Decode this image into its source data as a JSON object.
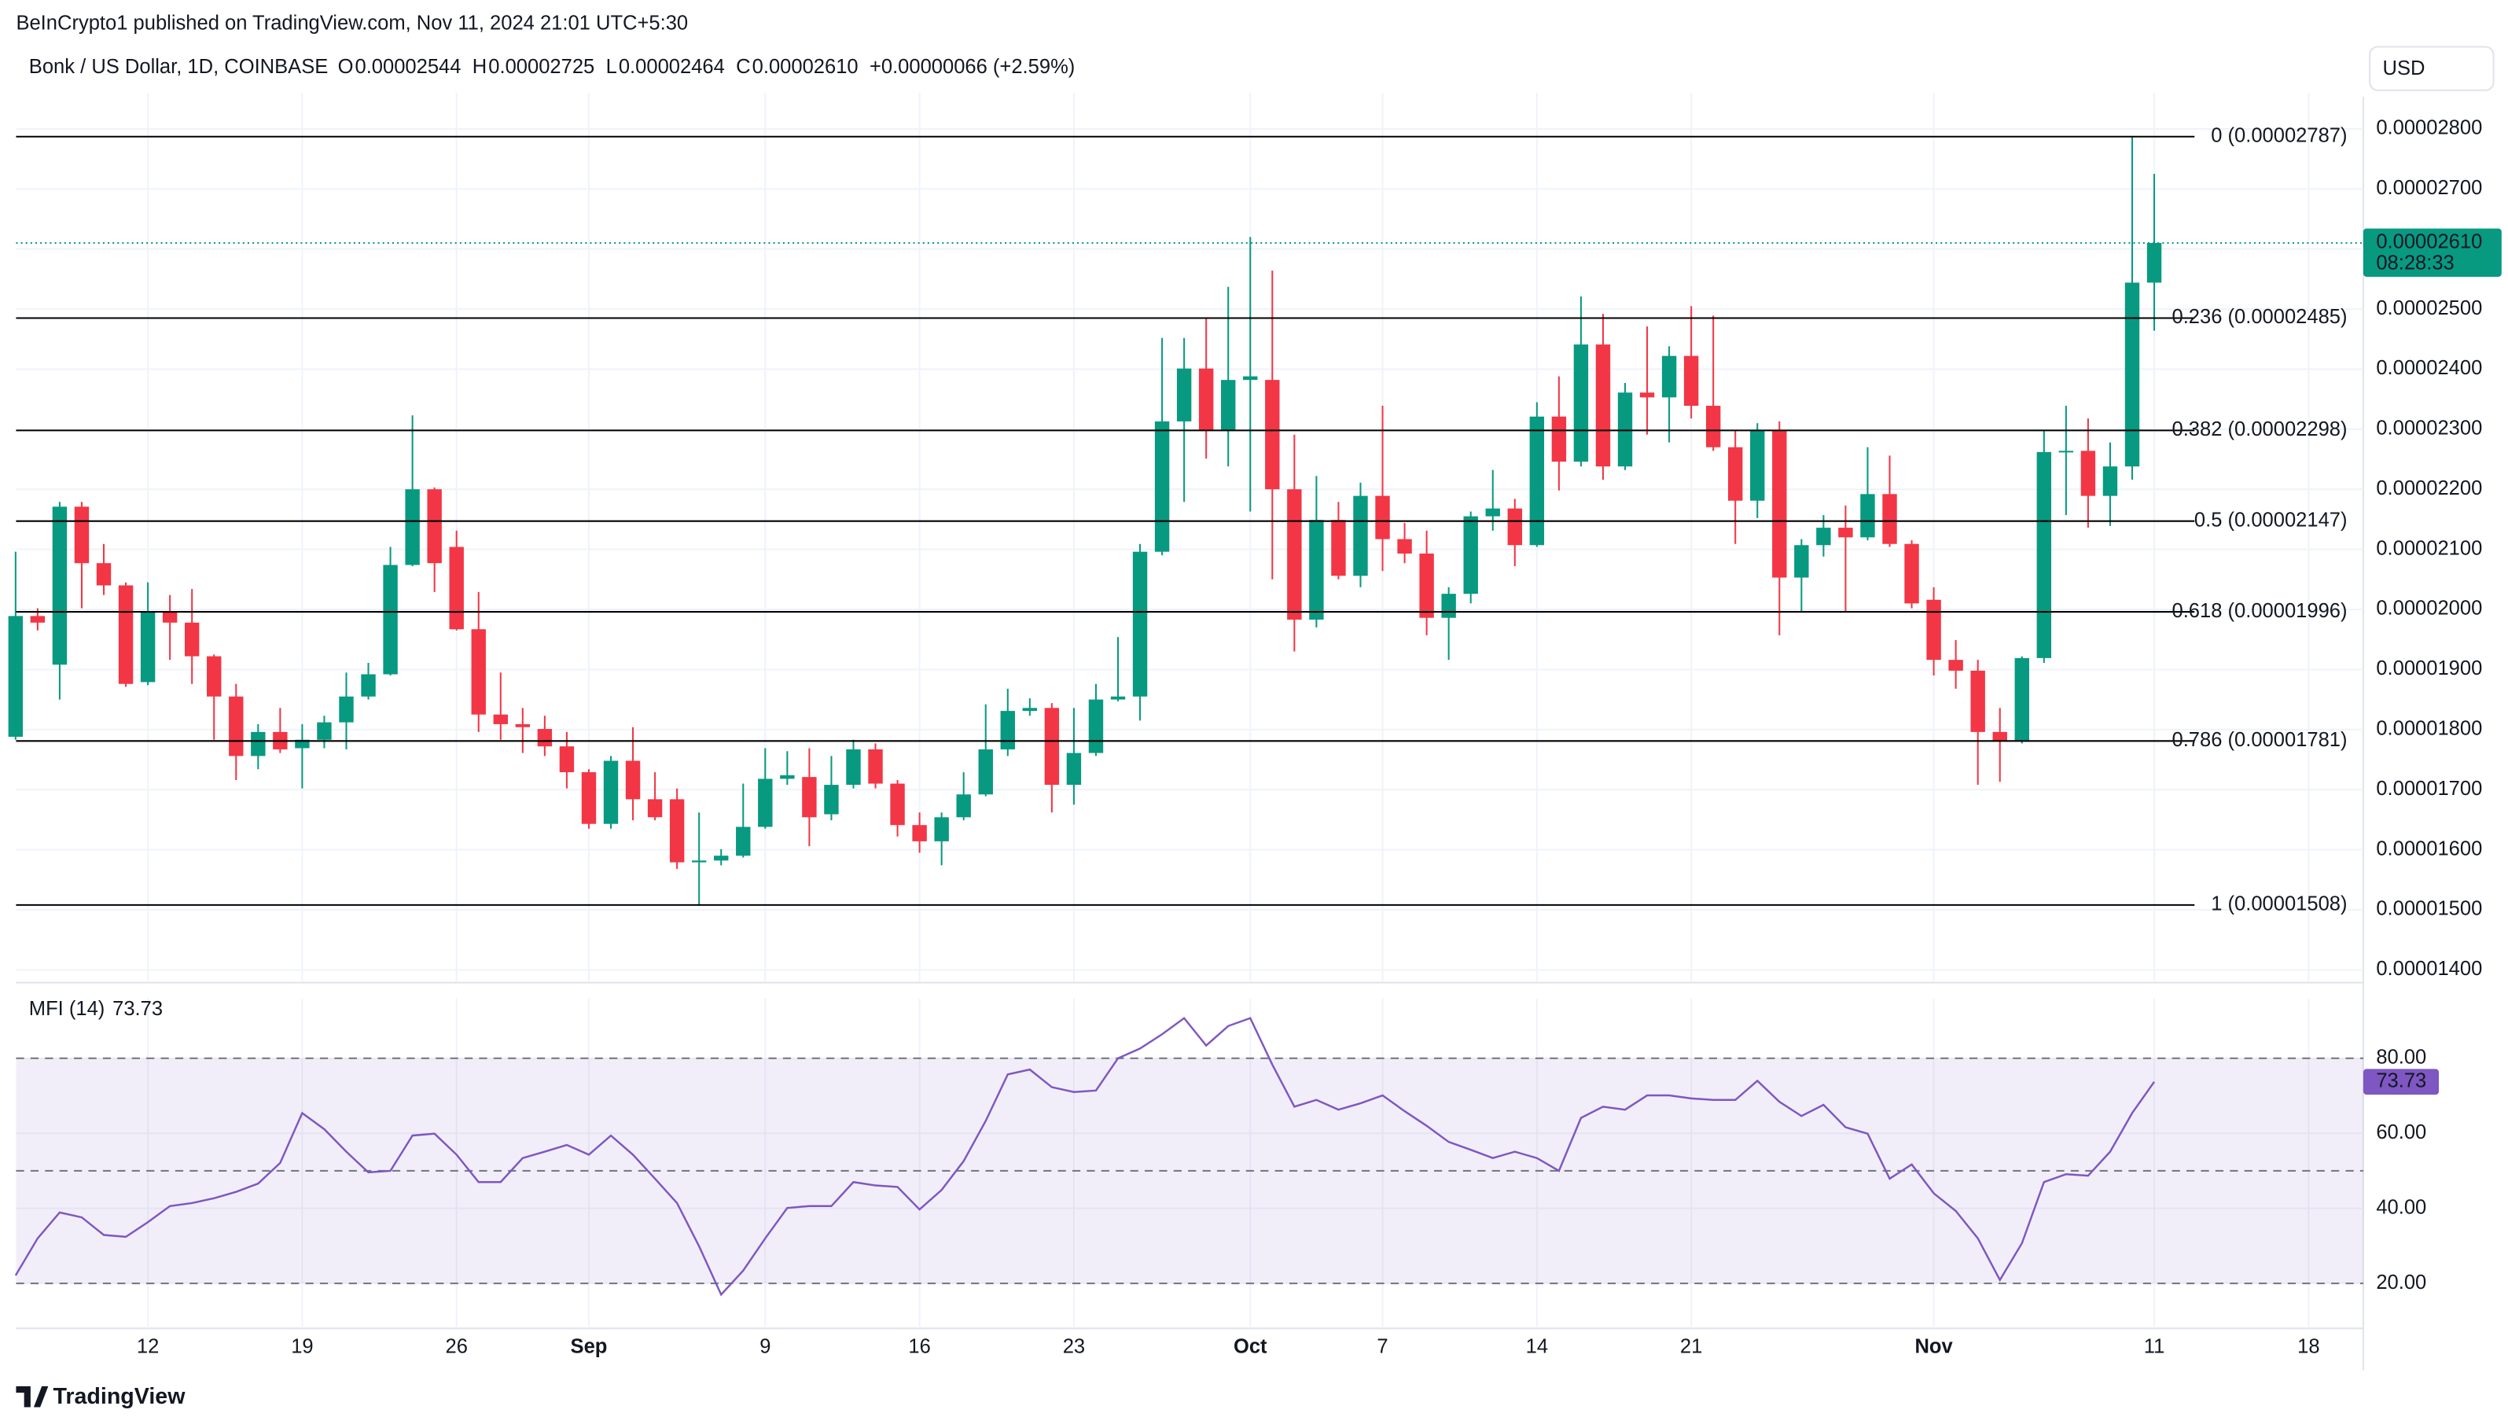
{
  "header": {
    "attribution": "BeInCrypto1 published on TradingView.com, Nov 11, 2024 21:01 UTC+5:30",
    "symbol": "Bonk / US Dollar, 1D, COINBASE",
    "ohlc": [
      {
        "key": "O",
        "value": "0.00002544"
      },
      {
        "key": "H",
        "value": "0.00002725"
      },
      {
        "key": "L",
        "value": "0.00002464"
      },
      {
        "key": "C",
        "value": "0.00002610"
      }
    ],
    "change": "+0.00000066 (+2.59%)",
    "currency": "USD"
  },
  "footer": {
    "brand": "TradingView"
  },
  "chart_data": [
    {
      "type": "candlestick",
      "up_color": "#089981",
      "down_color": "#f23645",
      "grid": true,
      "categories": [
        null,
        null,
        null,
        null,
        null,
        null,
        "12",
        null,
        null,
        null,
        null,
        null,
        null,
        "19",
        null,
        null,
        null,
        null,
        null,
        null,
        "26",
        null,
        null,
        null,
        null,
        null,
        "Sep",
        null,
        null,
        null,
        null,
        null,
        null,
        null,
        "9",
        null,
        null,
        null,
        null,
        null,
        null,
        "16",
        null,
        null,
        null,
        null,
        null,
        null,
        "23",
        null,
        null,
        null,
        null,
        null,
        null,
        null,
        "Oct",
        null,
        null,
        null,
        null,
        null,
        "7",
        null,
        null,
        null,
        null,
        null,
        null,
        "14",
        null,
        null,
        null,
        null,
        null,
        null,
        "21",
        null,
        null,
        null,
        null,
        null,
        null,
        null,
        null,
        null,
        null,
        "Nov",
        null,
        null,
        null,
        null,
        null,
        null,
        null,
        null,
        null,
        "11",
        null,
        null,
        null,
        null,
        null,
        null,
        "18",
        null,
        null
      ],
      "open": [
        1.788e-05,
        1.989e-05,
        1.908e-05,
        2.171e-05,
        2.077e-05,
        2.04e-05,
        1.879e-05,
        1.997e-05,
        1.978e-05,
        1.922e-05,
        1.855e-05,
        1.756e-05,
        1.796e-05,
        1.769e-05,
        1.783e-05,
        1.812e-05,
        1.855e-05,
        1.892e-05,
        2.074e-05,
        2.2e-05,
        2.104e-05,
        1.967e-05,
        1.825e-05,
        1.809e-05,
        1.801e-05,
        1.772e-05,
        1.729e-05,
        1.643e-05,
        1.748e-05,
        1.684e-05,
        1.684e-05,
        1.579e-05,
        1.582e-05,
        1.59e-05,
        1.638e-05,
        1.718e-05,
        1.721e-05,
        1.659e-05,
        1.708e-05,
        1.767e-05,
        1.71e-05,
        1.641e-05,
        1.614e-05,
        1.654e-05,
        1.692e-05,
        1.767e-05,
        1.831e-05,
        1.836e-05,
        1.708e-05,
        1.761e-05,
        1.85e-05,
        1.855e-05,
        2.096e-05,
        2.313e-05,
        2.401e-05,
        2.297e-05,
        2.382e-05,
        2.382e-05,
        2.2e-05,
        1.983e-05,
        2.149e-05,
        2.056e-05,
        2.189e-05,
        2.117e-05,
        2.093e-05,
        1.986e-05,
        2.026e-05,
        2.155e-05,
        2.168e-05,
        2.107e-05,
        2.321e-05,
        2.246e-05,
        2.441e-05,
        2.238e-05,
        2.361e-05,
        2.353e-05,
        2.422e-05,
        2.339e-05,
        2.27e-05,
        2.181e-05,
        2.297e-05,
        2.053e-05,
        2.107e-05,
        2.136e-05,
        2.12e-05,
        2.192e-05,
        2.109e-05,
        2.016e-05,
        1.916e-05,
        1.898e-05,
        1.796e-05,
        1.78e-05,
        1.919e-05,
        2.262e-05,
        2.264e-05,
        2.189e-05,
        2.238e-05,
        2.544e-05,
        null,
        null,
        null,
        null,
        null,
        null,
        null,
        null,
        null
      ],
      "high": [
        2.096e-05,
        2.002e-05,
        2.179e-05,
        2.179e-05,
        2.109e-05,
        2.045e-05,
        2.045e-05,
        2.024e-05,
        2.034e-05,
        1.925e-05,
        1.876e-05,
        1.809e-05,
        1.836e-05,
        1.809e-05,
        1.823e-05,
        1.895e-05,
        1.911e-05,
        2.104e-05,
        2.323e-05,
        2.203e-05,
        2.131e-05,
        2.029e-05,
        1.895e-05,
        1.836e-05,
        1.823e-05,
        1.796e-05,
        1.734e-05,
        1.756e-05,
        1.804e-05,
        1.729e-05,
        1.702e-05,
        1.662e-05,
        1.601e-05,
        1.71e-05,
        1.769e-05,
        1.764e-05,
        1.769e-05,
        1.756e-05,
        1.783e-05,
        1.777e-05,
        1.716e-05,
        1.662e-05,
        1.662e-05,
        1.729e-05,
        1.842e-05,
        1.868e-05,
        1.852e-05,
        1.844e-05,
        1.836e-05,
        1.876e-05,
        1.954e-05,
        2.109e-05,
        2.452e-05,
        2.452e-05,
        2.484e-05,
        2.537e-05,
        2.62e-05,
        2.564e-05,
        2.291e-05,
        2.222e-05,
        2.179e-05,
        2.211e-05,
        2.339e-05,
        2.144e-05,
        2.131e-05,
        2.037e-05,
        2.163e-05,
        2.232e-05,
        2.184e-05,
        2.345e-05,
        2.388e-05,
        2.521e-05,
        2.492e-05,
        2.377e-05,
        2.471e-05,
        2.438e-05,
        2.505e-05,
        2.489e-05,
        2.297e-05,
        2.31e-05,
        2.313e-05,
        2.117e-05,
        2.157e-05,
        2.173e-05,
        2.27e-05,
        2.256e-05,
        2.115e-05,
        2.037e-05,
        1.949e-05,
        1.916e-05,
        1.836e-05,
        1.922e-05,
        2.297e-05,
        2.339e-05,
        2.318e-05,
        2.278e-05,
        2.787e-05,
        2.725e-05,
        null,
        null,
        null,
        null,
        null,
        null,
        null,
        null,
        null
      ],
      "low": [
        1.783e-05,
        1.965e-05,
        1.85e-05,
        2.002e-05,
        2.024e-05,
        1.871e-05,
        1.874e-05,
        1.916e-05,
        1.876e-05,
        1.783e-05,
        1.716e-05,
        1.734e-05,
        1.761e-05,
        1.702e-05,
        1.769e-05,
        1.767e-05,
        1.85e-05,
        1.89e-05,
        2.072e-05,
        2.029e-05,
        1.965e-05,
        1.796e-05,
        1.783e-05,
        1.761e-05,
        1.756e-05,
        1.702e-05,
        1.635e-05,
        1.635e-05,
        1.649e-05,
        1.649e-05,
        1.568e-05,
        1.508e-05,
        1.574e-05,
        1.587e-05,
        1.635e-05,
        1.708e-05,
        1.606e-05,
        1.649e-05,
        1.702e-05,
        1.702e-05,
        1.622e-05,
        1.595e-05,
        1.574e-05,
        1.649e-05,
        1.689e-05,
        1.756e-05,
        1.823e-05,
        1.662e-05,
        1.675e-05,
        1.756e-05,
        1.847e-05,
        1.815e-05,
        2.09e-05,
        2.179e-05,
        2.251e-05,
        2.238e-05,
        2.163e-05,
        2.05e-05,
        1.93e-05,
        1.97e-05,
        2.05e-05,
        2.037e-05,
        2.064e-05,
        2.077e-05,
        1.957e-05,
        1.916e-05,
        2.01e-05,
        2.131e-05,
        2.072e-05,
        2.104e-05,
        2.198e-05,
        2.238e-05,
        2.216e-05,
        2.232e-05,
        2.291e-05,
        2.278e-05,
        2.318e-05,
        2.264e-05,
        2.109e-05,
        2.152e-05,
        1.957e-05,
        1.997e-05,
        2.088e-05,
        1.997e-05,
        2.115e-05,
        2.104e-05,
        2.002e-05,
        1.89e-05,
        1.868e-05,
        1.708e-05,
        1.713e-05,
        1.777e-05,
        1.911e-05,
        2.157e-05,
        2.136e-05,
        2.139e-05,
        2.216e-05,
        2.464e-05,
        null,
        null,
        null,
        null,
        null,
        null,
        null,
        null,
        null
      ],
      "close": [
        1.989e-05,
        1.978e-05,
        2.171e-05,
        2.077e-05,
        2.04e-05,
        1.876e-05,
        1.997e-05,
        1.978e-05,
        1.922e-05,
        1.855e-05,
        1.756e-05,
        1.796e-05,
        1.767e-05,
        1.783e-05,
        1.812e-05,
        1.855e-05,
        1.892e-05,
        2.074e-05,
        2.2e-05,
        2.077e-05,
        1.967e-05,
        1.825e-05,
        1.809e-05,
        1.804e-05,
        1.772e-05,
        1.729e-05,
        1.643e-05,
        1.748e-05,
        1.684e-05,
        1.654e-05,
        1.579e-05,
        1.582e-05,
        1.59e-05,
        1.638e-05,
        1.718e-05,
        1.724e-05,
        1.654e-05,
        1.708e-05,
        1.767e-05,
        1.71e-05,
        1.641e-05,
        1.614e-05,
        1.654e-05,
        1.692e-05,
        1.767e-05,
        1.831e-05,
        1.836e-05,
        1.708e-05,
        1.761e-05,
        1.85e-05,
        1.855e-05,
        2.096e-05,
        2.313e-05,
        2.401e-05,
        2.297e-05,
        2.382e-05,
        2.388e-05,
        2.2e-05,
        1.983e-05,
        2.149e-05,
        2.056e-05,
        2.189e-05,
        2.117e-05,
        2.093e-05,
        1.986e-05,
        2.026e-05,
        2.155e-05,
        2.168e-05,
        2.107e-05,
        2.321e-05,
        2.246e-05,
        2.441e-05,
        2.238e-05,
        2.361e-05,
        2.353e-05,
        2.422e-05,
        2.339e-05,
        2.27e-05,
        2.181e-05,
        2.297e-05,
        2.053e-05,
        2.107e-05,
        2.136e-05,
        2.12e-05,
        2.192e-05,
        2.109e-05,
        2.01e-05,
        1.916e-05,
        1.898e-05,
        1.796e-05,
        1.78e-05,
        1.919e-05,
        2.262e-05,
        2.264e-05,
        2.189e-05,
        2.238e-05,
        2.544e-05,
        2.61e-05,
        null,
        null,
        null,
        null,
        null,
        null,
        null,
        null,
        null
      ],
      "ylim": [
        1.38e-05,
        2.86e-05
      ],
      "yticks": [
        {
          "value": 2.8e-05,
          "label": "0.00002800"
        },
        {
          "value": 2.7e-05,
          "label": "0.00002700"
        },
        {
          "value": 2.6e-05,
          "label": "0.00002600"
        },
        {
          "value": 2.5e-05,
          "label": "0.00002500"
        },
        {
          "value": 2.4e-05,
          "label": "0.00002400"
        },
        {
          "value": 2.3e-05,
          "label": "0.00002300"
        },
        {
          "value": 2.2e-05,
          "label": "0.00002200"
        },
        {
          "value": 2.1e-05,
          "label": "0.00002100"
        },
        {
          "value": 2e-05,
          "label": "0.00002000"
        },
        {
          "value": 1.9e-05,
          "label": "0.00001900"
        },
        {
          "value": 1.8e-05,
          "label": "0.00001800"
        },
        {
          "value": 1.7e-05,
          "label": "0.00001700"
        },
        {
          "value": 1.6e-05,
          "label": "0.00001600"
        },
        {
          "value": 1.5e-05,
          "label": "0.00001500"
        },
        {
          "value": 1.4e-05,
          "label": "0.00001400"
        }
      ],
      "fib_levels": [
        {
          "label": "0 (0.00002787)",
          "value": 2.787e-05
        },
        {
          "label": "0.236 (0.00002485)",
          "value": 2.485e-05
        },
        {
          "label": "0.382 (0.00002298)",
          "value": 2.298e-05
        },
        {
          "label": "0.5 (0.00002147)",
          "value": 2.147e-05
        },
        {
          "label": "0.618 (0.00001996)",
          "value": 1.996e-05
        },
        {
          "label": "0.786 (0.00001781)",
          "value": 1.781e-05
        },
        {
          "label": "1 (0.00001508)",
          "value": 1.508e-05
        }
      ],
      "fib_color": "#000000",
      "last_price": {
        "value": 2.61e-05,
        "label": "0.00002610"
      },
      "countdown": "08:28:33"
    },
    {
      "type": "line",
      "name": "MFI (14)",
      "color": "#7e57c2",
      "last_label": "73.73",
      "grid": true,
      "values": [
        22.1,
        32,
        38.9,
        37.6,
        32.9,
        32.4,
        36.3,
        40.6,
        41.4,
        42.7,
        44.4,
        46.6,
        52.1,
        65.4,
        61.1,
        55.1,
        49.6,
        50,
        59.4,
        59.9,
        54.3,
        47,
        47,
        53.4,
        55.1,
        56.9,
        54.3,
        59.4,
        54.3,
        47.9,
        41.4,
        29.9,
        17,
        23.4,
        32,
        40.1,
        40.6,
        40.6,
        47,
        46.1,
        45.7,
        39.7,
        44.9,
        52.6,
        63.3,
        75.7,
        77,
        72.3,
        71,
        71.4,
        80,
        82.6,
        86.4,
        90.7,
        83.4,
        88.6,
        90.7,
        78.3,
        67.1,
        68.9,
        66.3,
        68,
        70.1,
        65.9,
        62,
        57.7,
        55.6,
        53.4,
        55.1,
        53.4,
        50,
        64.1,
        67.1,
        66.3,
        70.1,
        70.1,
        69.3,
        68.9,
        68.9,
        74,
        68.4,
        64.6,
        67.6,
        61.6,
        59.9,
        47.9,
        51.7,
        44,
        39.3,
        32,
        20.9,
        30.7,
        47,
        49.1,
        48.7,
        55.1,
        65.4,
        73.73,
        null,
        null,
        null,
        null,
        null,
        null,
        null,
        null,
        null
      ],
      "bands": {
        "upper": 80,
        "middle": 50,
        "lower": 20
      },
      "ylim": [
        8,
        96
      ],
      "yticks": [
        {
          "value": 80,
          "label": "80.00"
        },
        {
          "value": 60,
          "label": "60.00"
        },
        {
          "value": 40,
          "label": "40.00"
        },
        {
          "value": 20,
          "label": "20.00"
        }
      ]
    }
  ]
}
